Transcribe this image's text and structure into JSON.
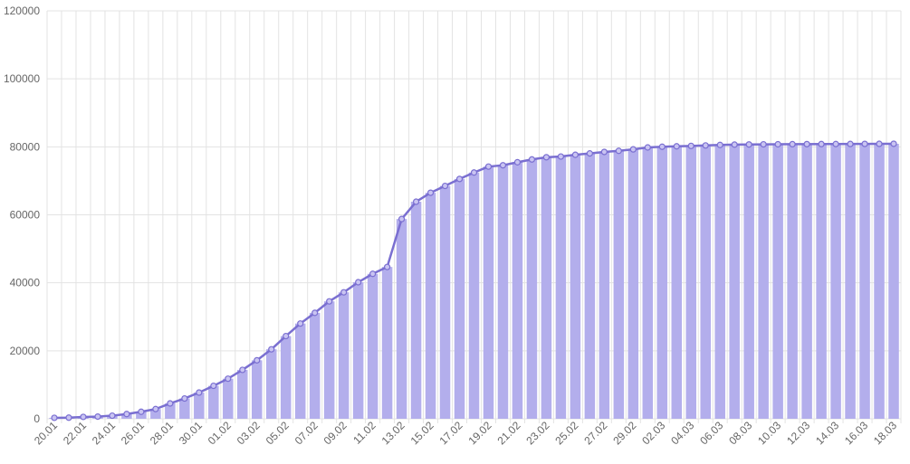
{
  "chart_data": {
    "type": "bar",
    "categories": [
      "20.01",
      "21.01",
      "22.01",
      "23.01",
      "24.01",
      "25.01",
      "26.01",
      "27.01",
      "28.01",
      "29.01",
      "30.01",
      "31.01",
      "01.02",
      "02.02",
      "03.02",
      "04.02",
      "05.02",
      "06.02",
      "07.02",
      "08.02",
      "09.02",
      "10.02",
      "11.02",
      "12.02",
      "13.02",
      "14.02",
      "15.02",
      "16.02",
      "17.02",
      "18.02",
      "19.02",
      "20.02",
      "21.02",
      "22.02",
      "23.02",
      "24.02",
      "25.02",
      "26.02",
      "27.02",
      "28.02",
      "29.02",
      "01.03",
      "02.03",
      "03.03",
      "04.03",
      "05.03",
      "06.03",
      "07.03",
      "08.03",
      "09.03",
      "10.03",
      "11.03",
      "12.03",
      "13.03",
      "14.03",
      "15.03",
      "16.03",
      "17.03",
      "18.03"
    ],
    "tick_labels": [
      "20.01",
      "22.01",
      "24.01",
      "26.01",
      "28.01",
      "30.01",
      "01.02",
      "03.02",
      "05.02",
      "07.02",
      "09.02",
      "11.02",
      "13.02",
      "15.02",
      "17.02",
      "19.02",
      "21.02",
      "23.02",
      "25.02",
      "27.02",
      "29.02",
      "02.03",
      "04.03",
      "06.03",
      "08.03",
      "10.03",
      "12.03",
      "14.03",
      "16.03",
      "18.03"
    ],
    "series": [
      {
        "type": "bar",
        "values": [
          278,
          326,
          547,
          639,
          916,
          1399,
          2062,
          2863,
          4515,
          5974,
          7711,
          9692,
          11791,
          14380,
          17205,
          20440,
          24324,
          28018,
          31161,
          34546,
          37198,
          40171,
          42638,
          44653,
          58761,
          63851,
          66492,
          68500,
          70548,
          72436,
          74185,
          74576,
          75465,
          76288,
          76936,
          77150,
          77658,
          78064,
          78497,
          78824,
          79251,
          79824,
          80026,
          80151,
          80270,
          80409,
          80552,
          80651,
          80695,
          80735,
          80754,
          80778,
          80793,
          80813,
          80824,
          80844,
          80860,
          80881,
          80894
        ]
      },
      {
        "type": "line",
        "values": [
          278,
          326,
          547,
          639,
          916,
          1399,
          2062,
          2863,
          4515,
          5974,
          7711,
          9692,
          11791,
          14380,
          17205,
          20440,
          24324,
          28018,
          31161,
          34546,
          37198,
          40171,
          42638,
          44653,
          58761,
          63851,
          66492,
          68500,
          70548,
          72436,
          74185,
          74576,
          75465,
          76288,
          76936,
          77150,
          77658,
          78064,
          78497,
          78824,
          79251,
          79824,
          80026,
          80151,
          80270,
          80409,
          80552,
          80651,
          80695,
          80735,
          80754,
          80778,
          80793,
          80813,
          80824,
          80844,
          80860,
          80881,
          80894
        ]
      }
    ],
    "y_ticks": [
      "0",
      "20000",
      "40000",
      "60000",
      "80000",
      "100000",
      "120000"
    ],
    "ylim": [
      0,
      120000
    ],
    "grid": true,
    "colors": {
      "bar": "#b3aeec",
      "line": "#7a6fd1",
      "grid": "#e3e3e3",
      "axis_text": "#666666"
    }
  }
}
